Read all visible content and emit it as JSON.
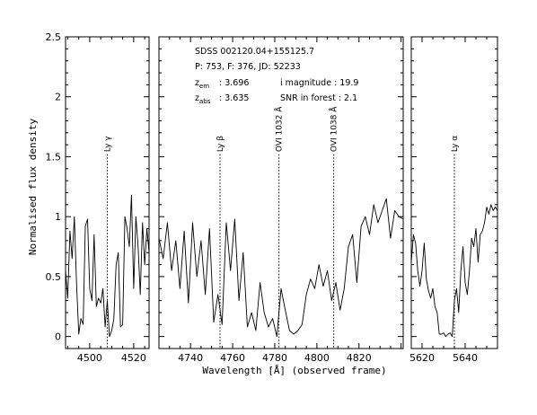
{
  "chart_data": {
    "type": "line",
    "title": "",
    "ylabel": "Normalised flux density",
    "xlabel": "Wavelength [Å] (observed frame)",
    "ylim": [
      -0.1,
      2.5
    ],
    "yticks": [
      0,
      0.5,
      1,
      1.5,
      2,
      2.5
    ],
    "ytick_labels": [
      "0",
      "0.5",
      "1",
      "1.5",
      "2",
      "2.5"
    ],
    "grid": false,
    "info": {
      "object": "SDSS 002120.04+155125.7",
      "plate_line": "P: 753, F: 376, JD: 52233",
      "zem_label": "z",
      "zem_sub": "em",
      "zem_value": ": 3.696",
      "zabs_label": "z",
      "zabs_sub": "abs",
      "zabs_value": ": 3.635",
      "imag": "i magnitude : 19.9",
      "snr": "SNR in forest : 2.1"
    },
    "panels": [
      {
        "xlim": [
          4489,
          4527
        ],
        "xticks": [
          4500,
          4520
        ],
        "xtick_labels": [
          "4500",
          "4520"
        ],
        "lines": [
          {
            "x": 4508,
            "label": "Ly γ"
          }
        ],
        "x": [
          4489,
          4490,
          4491,
          4492,
          4493,
          4494,
          4495,
          4496,
          4497,
          4498,
          4499,
          4500,
          4501,
          4502,
          4503,
          4504,
          4505,
          4506,
          4507,
          4508,
          4509,
          4510,
          4511,
          4512,
          4513,
          4514,
          4515,
          4516,
          4517,
          4518,
          4519,
          4520,
          4521,
          4522,
          4523,
          4524,
          4525,
          4526,
          4527
        ],
        "y": [
          0.55,
          0.32,
          0.88,
          0.65,
          1.0,
          0.45,
          0.02,
          0.15,
          0.1,
          0.92,
          0.98,
          0.4,
          0.3,
          0.85,
          0.25,
          0.32,
          0.28,
          0.4,
          0.08,
          0.3,
          0.0,
          0.05,
          0.15,
          0.6,
          0.7,
          0.08,
          0.1,
          1.0,
          0.9,
          0.75,
          1.18,
          0.4,
          1.0,
          0.75,
          0.35,
          0.95,
          0.6,
          0.9,
          0.7
        ]
      },
      {
        "xlim": [
          4725,
          4841
        ],
        "xticks": [
          4740,
          4760,
          4780,
          4800,
          4820
        ],
        "xtick_labels": [
          "4740",
          "4760",
          "4780",
          "4800",
          "4820"
        ],
        "lines": [
          {
            "x": 4754,
            "label": "Ly β"
          },
          {
            "x": 4782,
            "label": "OVI 1032 Å"
          },
          {
            "x": 4808,
            "label": "OVI 1038 Å"
          }
        ],
        "x": [
          4725,
          4727,
          4729,
          4731,
          4733,
          4735,
          4737,
          4739,
          4741,
          4743,
          4745,
          4747,
          4749,
          4751,
          4753,
          4755,
          4757,
          4759,
          4761,
          4763,
          4765,
          4767,
          4769,
          4771,
          4773,
          4775,
          4777,
          4779,
          4781,
          4783,
          4785,
          4787,
          4789,
          4791,
          4793,
          4795,
          4797,
          4799,
          4801,
          4803,
          4805,
          4807,
          4809,
          4811,
          4813,
          4815,
          4817,
          4819,
          4821,
          4823,
          4825,
          4827,
          4829,
          4831,
          4833,
          4835,
          4837,
          4839,
          4841
        ],
        "y": [
          0.82,
          0.65,
          0.95,
          0.55,
          0.8,
          0.4,
          0.88,
          0.28,
          0.95,
          0.5,
          0.8,
          0.35,
          0.9,
          0.12,
          0.35,
          0.1,
          0.95,
          0.55,
          0.98,
          0.3,
          0.7,
          0.08,
          0.2,
          0.05,
          0.45,
          0.2,
          0.08,
          0.15,
          0.0,
          0.4,
          0.22,
          0.05,
          0.02,
          0.05,
          0.1,
          0.35,
          0.48,
          0.4,
          0.6,
          0.42,
          0.55,
          0.3,
          0.45,
          0.22,
          0.4,
          0.75,
          0.85,
          0.45,
          0.92,
          1.0,
          0.85,
          1.1,
          0.95,
          1.05,
          1.15,
          0.82,
          1.05,
          1.0,
          0.98
        ]
      },
      {
        "xlim": [
          5615,
          5655
        ],
        "xticks": [
          5620,
          5640
        ],
        "xtick_labels": [
          "5620",
          "5640"
        ],
        "lines": [
          {
            "x": 5635,
            "label": "Ly α"
          }
        ],
        "x": [
          5615,
          5616,
          5617,
          5618,
          5619,
          5620,
          5621,
          5622,
          5623,
          5624,
          5625,
          5626,
          5627,
          5628,
          5629,
          5630,
          5631,
          5632,
          5633,
          5634,
          5635,
          5636,
          5637,
          5638,
          5639,
          5640,
          5641,
          5642,
          5643,
          5644,
          5645,
          5646,
          5647,
          5648,
          5649,
          5650,
          5651,
          5652,
          5653,
          5654,
          5655
        ],
        "y": [
          0.62,
          0.85,
          0.78,
          0.55,
          0.42,
          0.55,
          0.78,
          0.48,
          0.38,
          0.32,
          0.4,
          0.25,
          0.2,
          0.02,
          0.02,
          0.03,
          0.0,
          0.02,
          0.03,
          0.0,
          0.3,
          0.4,
          0.2,
          0.55,
          0.75,
          0.45,
          0.35,
          0.55,
          0.82,
          0.75,
          0.9,
          0.62,
          0.85,
          0.88,
          0.95,
          1.08,
          1.02,
          1.1,
          1.05,
          1.08,
          1.05
        ]
      }
    ]
  }
}
